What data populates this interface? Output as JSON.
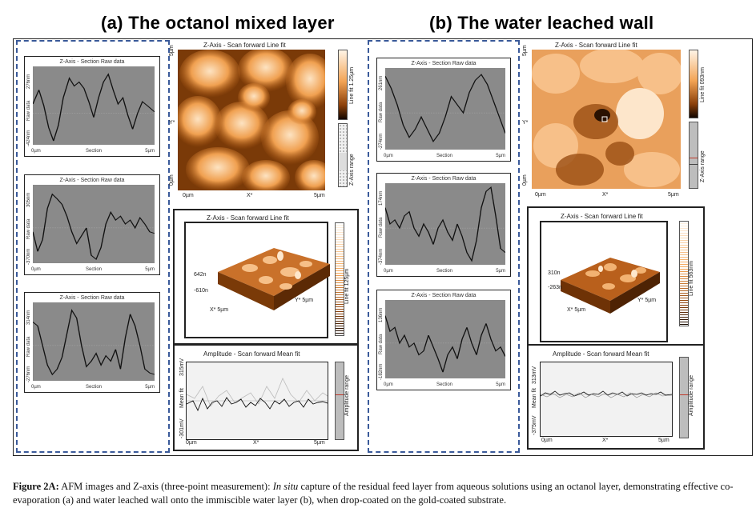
{
  "titles": {
    "left": "(a) The octanol mixed layer",
    "right": "(b) The water leached wall"
  },
  "section_plot": {
    "title": "Z-Axis - Section   Raw data",
    "ylabel": "Raw data",
    "xlabel": "Section",
    "x_start": "0µm",
    "x_end": "5µm"
  },
  "left_sections": [
    {
      "ytop": "276nm",
      "ybot": "-424nm"
    },
    {
      "ytop": "305nm",
      "ybot": "-370nm"
    },
    {
      "ytop": "314nm",
      "ybot": "-276nm"
    }
  ],
  "right_sections": [
    {
      "ytop": "261nm",
      "ybot": "-274nm"
    },
    {
      "ytop": "174nm",
      "ybot": "-374nm"
    },
    {
      "ytop": "136nm",
      "ybot": "-182nm"
    }
  ],
  "afm_left": {
    "title": "Z-Axis - Scan forward   Line fit",
    "ytop": "5µm",
    "ybot": "0µm",
    "yaxis": "Y*",
    "x0": "0µm",
    "xmid": "X*",
    "x1": "5µm",
    "colorbar": "Line fit 1.25µm",
    "range": "Z-Axis range"
  },
  "afm_right": {
    "title": "Z-Axis - Scan forward   Line fit",
    "ytop": "5µm",
    "ybot": "0µm",
    "yaxis": "Y*",
    "x0": "0µm",
    "xmid": "X*",
    "x1": "5µm",
    "colorbar": "Line fit 093nm",
    "range": "Z-Axis range"
  },
  "view3d_left": {
    "title": "Z-Axis - Scan forward   Line fit",
    "ztop": "642n",
    "zbot": "-610n",
    "xaxis": "X* 5µm",
    "yaxis": "Y* 5µm",
    "colorbar": "Line fit 125µm"
  },
  "view3d_right": {
    "title": "Z-Axis - Scan forward   Line fit",
    "ztop": "310n",
    "zbot": "-263n",
    "xaxis": "X* 5µm",
    "yaxis": "Y* 5µm",
    "colorbar": "Line fit 563nm"
  },
  "amp_left": {
    "title": "Amplitude - Scan forward   Mean fit",
    "ytop": "315mV",
    "ymid": "Mean fit",
    "ybot": "-301mV",
    "x0": "0µm",
    "xmid": "X*",
    "x1": "5µm",
    "range": "Amplitude range"
  },
  "amp_right": {
    "title": "Amplitude - Scan forward   Mean fit",
    "ytop": "313mV",
    "ymid": "Mean fit",
    "ybot": "-375mV",
    "x0": "0µm",
    "xmid": "X*",
    "x1": "5µm",
    "range": "Amplitude range"
  },
  "caption": {
    "label": "Figure 2A:",
    "lead": "AFM images and Z-axis (three-point measurement):",
    "italic": "In situ",
    "rest": "capture of the residual feed layer from aqueous solutions using an octanol layer, demonstrating effective co-evaporation (a) and water leached wall onto the immiscible water layer (b), when drop-coated on the gold-coated substrate."
  }
}
